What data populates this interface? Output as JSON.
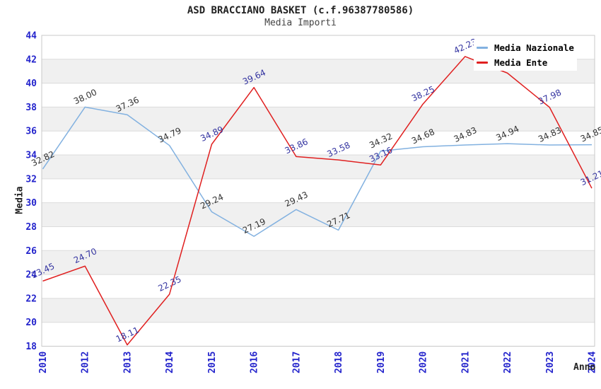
{
  "legend": {
    "items": [
      {
        "label": "Media Nazionale",
        "color": "#82b1e0"
      },
      {
        "label": "Media Ente",
        "color": "#e02020"
      }
    ]
  },
  "chart_data": {
    "type": "line",
    "title": "ASD BRACCIANO BASKET (c.f.96387780586)",
    "subtitle": "Media Importi",
    "xlabel": "Anno",
    "ylabel": "Media",
    "categories": [
      "2010",
      "2012",
      "2013",
      "2014",
      "2015",
      "2016",
      "2017",
      "2018",
      "2019",
      "2020",
      "2021",
      "2022",
      "2023",
      "2024"
    ],
    "ylim": [
      18,
      44
    ],
    "ytick_step": 2,
    "grid": true,
    "legend_position": "top-right",
    "band_color": "#f0f0f0",
    "grid_color": "#dcdcdc",
    "border_color": "#c8c8c8",
    "tick_color": "#2323cc",
    "bands": [
      [
        20,
        22
      ],
      [
        24,
        26
      ],
      [
        28,
        30
      ],
      [
        32,
        34
      ],
      [
        36,
        38
      ],
      [
        40,
        42
      ]
    ],
    "series": [
      {
        "name": "Media Nazionale",
        "color": "#82b1e0",
        "label_color": "#333333",
        "values": [
          32.82,
          38.0,
          37.36,
          34.79,
          29.24,
          27.19,
          29.43,
          27.71,
          34.32,
          34.68,
          34.83,
          34.94,
          34.83,
          34.85
        ],
        "point_labels": [
          "32.82",
          "38.00",
          "37.36",
          "34.79",
          "29.24",
          "27.19",
          "29.43",
          "27.71",
          "34.32",
          "34.68",
          "34.83",
          "34.94",
          "34.83",
          "34.85"
        ]
      },
      {
        "name": "Media Ente",
        "color": "#e02020",
        "label_color": "#3333a0",
        "values": [
          23.45,
          24.7,
          18.11,
          22.35,
          34.89,
          39.64,
          33.86,
          33.58,
          33.16,
          38.25,
          42.23,
          40.85,
          37.98,
          31.21
        ],
        "point_labels": [
          "23.45",
          "24.70",
          "18.11",
          "22.35",
          "34.89",
          "39.64",
          "33.86",
          "33.58",
          "33.16",
          "38.25",
          "42.23",
          null,
          "37.98",
          "31.21"
        ]
      }
    ]
  }
}
